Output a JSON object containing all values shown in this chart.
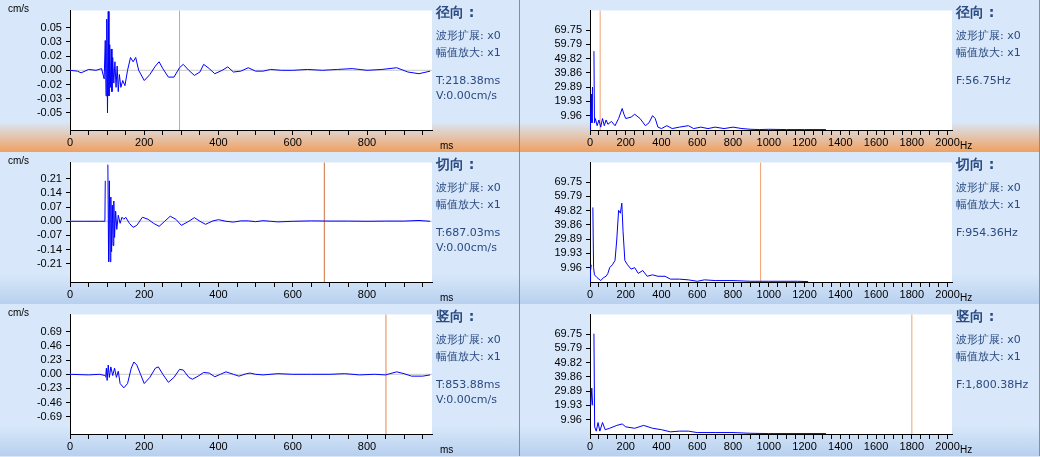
{
  "chart_data": [
    {
      "type": "line",
      "ylabel": "cm/s",
      "xlabel": "ms",
      "grid": false,
      "legend": false,
      "marker": "none",
      "xlim": [
        0,
        975
      ],
      "ylim": [
        -0.07,
        0.07
      ],
      "xticks": [
        0,
        {
          "value": 50,
          "label": null
        },
        {
          "value": 100,
          "label": null
        },
        {
          "value": 150,
          "label": null
        },
        200,
        {
          "value": 250,
          "label": null
        },
        {
          "value": 300,
          "label": null
        },
        {
          "value": 350,
          "label": null
        },
        400,
        {
          "value": 450,
          "label": null
        },
        {
          "value": 500,
          "label": null
        },
        {
          "value": 550,
          "label": null
        },
        600,
        {
          "value": 650,
          "label": null
        },
        {
          "value": 700,
          "label": null
        },
        {
          "value": 750,
          "label": null
        },
        800,
        {
          "value": 850,
          "label": null
        },
        {
          "value": 900,
          "label": null
        },
        {
          "value": 950,
          "label": null
        }
      ],
      "yticks": [
        {
          "value": -0.05,
          "label": "-0.05"
        },
        {
          "value": -0.0333,
          "label": "-0.03"
        },
        {
          "value": -0.0167,
          "label": "-0.02"
        },
        {
          "value": 0,
          "label": "0.00"
        },
        {
          "value": 0.0167,
          "label": "0.02"
        },
        {
          "value": 0.0333,
          "label": "0.03"
        },
        {
          "value": 0.05,
          "label": "0.05"
        }
      ],
      "series": [
        {
          "color": "#0000ff",
          "x": [
            0,
            20,
            30,
            50,
            70,
            85,
            92,
            95,
            97,
            99,
            101,
            103,
            105,
            107,
            109,
            111,
            113,
            115,
            118,
            121,
            124,
            127,
            130,
            133,
            137,
            142,
            148,
            155,
            163,
            170,
            177,
            185,
            200,
            215,
            230,
            240,
            250,
            265,
            280,
            295,
            305,
            320,
            335,
            350,
            360,
            375,
            390,
            410,
            425,
            440,
            460,
            480,
            500,
            520,
            540,
            570,
            600,
            640,
            680,
            720,
            760,
            800,
            840,
            880,
            910,
            940,
            970
          ],
          "values": [
            0,
            -0.001,
            -0.003,
            0.001,
            0,
            0.002,
            -0.01,
            0.035,
            -0.03,
            0.06,
            -0.05,
            0.069,
            -0.03,
            0.03,
            -0.02,
            0.025,
            -0.025,
            0.015,
            -0.015,
            0.01,
            -0.02,
            0.005,
            -0.025,
            -0.005,
            -0.02,
            -0.012,
            -0.018,
            0,
            0.015,
            0.01,
            0.015,
            0,
            -0.012,
            -0.005,
            0.005,
            0.01,
            0.002,
            -0.008,
            -0.008,
            0.003,
            0.007,
            0,
            -0.006,
            -0.002,
            0.007,
            0.002,
            -0.004,
            0,
            0.004,
            -0.002,
            -0.001,
            0.003,
            -0.001,
            -0.001,
            0.001,
            0,
            0,
            0.001,
            0,
            0.001,
            0.002,
            0,
            0.001,
            0.003,
            -0.002,
            -0.004,
            -0.001
          ]
        }
      ],
      "ref_lines": [
        {
          "axis": "y",
          "value": 0,
          "color": "#c8c8c8"
        },
        {
          "axis": "x",
          "value": 295,
          "color": "#e8a070"
        }
      ],
      "annotations": [
        "径向 :",
        "波形扩展: x0",
        "幅值放大: x1",
        "T:218.38ms",
        "V:0.00cm/s"
      ]
    },
    {
      "type": "line",
      "xlabel": "Hz",
      "grid": false,
      "legend": false,
      "marker": "none",
      "xlim": [
        0,
        2025
      ],
      "ylim": [
        0,
        83.3
      ],
      "xticks": [
        0,
        {
          "value": 50,
          "label": null
        },
        {
          "value": 100,
          "label": null
        },
        {
          "value": 150,
          "label": null
        },
        200,
        {
          "value": 250,
          "label": null
        },
        {
          "value": 300,
          "label": null
        },
        {
          "value": 350,
          "label": null
        },
        400,
        {
          "value": 450,
          "label": null
        },
        {
          "value": 500,
          "label": null
        },
        {
          "value": 550,
          "label": null
        },
        600,
        {
          "value": 650,
          "label": null
        },
        {
          "value": 700,
          "label": null
        },
        {
          "value": 750,
          "label": null
        },
        800,
        {
          "value": 850,
          "label": null
        },
        {
          "value": 900,
          "label": null
        },
        {
          "value": 950,
          "label": null
        },
        1000,
        {
          "value": 1050,
          "label": null
        },
        {
          "value": 1100,
          "label": null
        },
        {
          "value": 1150,
          "label": null
        },
        1200,
        {
          "value": 1250,
          "label": null
        },
        {
          "value": 1300,
          "label": null
        },
        {
          "value": 1350,
          "label": null
        },
        1400,
        {
          "value": 1450,
          "label": null
        },
        {
          "value": 1500,
          "label": null
        },
        {
          "value": 1550,
          "label": null
        },
        1600,
        {
          "value": 1650,
          "label": null
        },
        {
          "value": 1700,
          "label": null
        },
        {
          "value": 1750,
          "label": null
        },
        1800,
        {
          "value": 1850,
          "label": null
        },
        {
          "value": 1900,
          "label": null
        },
        {
          "value": 1950,
          "label": null
        },
        2000
      ],
      "yticks": [
        9.96,
        19.93,
        29.89,
        39.86,
        49.82,
        59.79,
        69.75
      ],
      "series": [
        {
          "color": "#0000ff",
          "x": [
            0,
            3,
            7,
            11,
            14,
            18,
            22,
            25,
            30,
            40,
            50,
            60,
            70,
            80,
            90,
            100,
            120,
            140,
            160,
            180,
            190,
            200,
            230,
            250,
            280,
            310,
            330,
            350,
            365,
            380,
            400,
            430,
            460,
            500,
            550,
            580,
            620,
            660,
            700,
            750,
            800,
            850,
            900,
            950,
            1000,
            1100,
            1200,
            1320
          ],
          "values": [
            0,
            10,
            25,
            5,
            30,
            null,
            55,
            5,
            8,
            3,
            7,
            2,
            8,
            3,
            7,
            4,
            6,
            3,
            8,
            15,
            11,
            8,
            9,
            11,
            8,
            3,
            5,
            10,
            8,
            2,
            1,
            3,
            1,
            2,
            3,
            1,
            2,
            1,
            2,
            1,
            2,
            1,
            0.5,
            0.3,
            0.5,
            0.3,
            0.3,
            0.3
          ]
        }
      ],
      "ref_lines": [
        {
          "axis": "x",
          "value": 56.75,
          "color": "#f0a070"
        }
      ],
      "annotations": [
        "径向 :",
        "波形扩展: x0",
        "幅值放大: x1",
        "F:56.75Hz"
      ]
    },
    {
      "type": "line",
      "ylabel": "cm/s",
      "xlabel": "ms",
      "grid": false,
      "legend": false,
      "marker": "none",
      "xlim": [
        0,
        975
      ],
      "ylim": [
        -0.3,
        0.29
      ],
      "xticks": [
        0,
        {
          "value": 50,
          "label": null
        },
        {
          "value": 100,
          "label": null
        },
        {
          "value": 150,
          "label": null
        },
        200,
        {
          "value": 250,
          "label": null
        },
        {
          "value": 300,
          "label": null
        },
        {
          "value": 350,
          "label": null
        },
        400,
        {
          "value": 450,
          "label": null
        },
        {
          "value": 500,
          "label": null
        },
        {
          "value": 550,
          "label": null
        },
        600,
        {
          "value": 650,
          "label": null
        },
        {
          "value": 700,
          "label": null
        },
        {
          "value": 750,
          "label": null
        },
        800,
        {
          "value": 850,
          "label": null
        },
        {
          "value": 900,
          "label": null
        },
        {
          "value": 950,
          "label": null
        }
      ],
      "yticks": [
        {
          "value": -0.21,
          "label": "-0.21"
        },
        {
          "value": -0.14,
          "label": "-0.14"
        },
        {
          "value": -0.07,
          "label": "-0.07"
        },
        {
          "value": 0,
          "label": "0.00"
        },
        {
          "value": 0.07,
          "label": "0.07"
        },
        {
          "value": 0.14,
          "label": "0.14"
        },
        {
          "value": 0.21,
          "label": "0.21"
        }
      ],
      "series": [
        {
          "color": "#0000ff",
          "x": [
            0,
            40,
            80,
            94,
            95,
            96,
            98,
            100,
            102,
            104,
            106,
            108,
            110,
            112,
            114,
            116,
            118,
            120,
            123,
            126,
            130,
            135,
            140,
            145,
            150,
            160,
            170,
            180,
            195,
            210,
            225,
            240,
            255,
            270,
            285,
            300,
            320,
            335,
            350,
            365,
            385,
            400,
            420,
            440,
            460,
            480,
            500,
            520,
            540,
            560,
            600,
            650,
            700,
            750,
            800,
            850,
            900,
            940,
            970
          ],
          "values": [
            0,
            0,
            0,
            0,
            0.2,
            null,
            null,
            null,
            0.28,
            -0.2,
            0.2,
            -0.2,
            0.12,
            -0.15,
            0.08,
            -0.12,
            0.1,
            -0.08,
            0.05,
            -0.04,
            0.03,
            -0.01,
            0.02,
            0.01,
            0.02,
            -0.01,
            -0.03,
            -0.02,
            0.02,
            0.01,
            -0.01,
            -0.025,
            0,
            0.025,
            0.01,
            -0.02,
            0,
            0.018,
            0,
            -0.015,
            0.002,
            0.008,
            0,
            -0.004,
            0.002,
            0.002,
            -0.002,
            0.003,
            0,
            -0.003,
            0,
            0.002,
            0.001,
            0.001,
            0,
            0.001,
            0.001,
            0.004,
            0
          ]
        }
      ],
      "ref_lines": [
        {
          "axis": "y",
          "value": 0,
          "color": "#c8c8c8"
        },
        {
          "axis": "x",
          "value": 685,
          "color": "#d07040"
        }
      ],
      "annotations": [
        "切向 :",
        "波形扩展: x0",
        "幅值放大: x1",
        "T:687.03ms",
        "V:0.00cm/s"
      ]
    },
    {
      "type": "line",
      "xlabel": "Hz",
      "grid": false,
      "legend": false,
      "marker": "none",
      "xlim": [
        0,
        2025
      ],
      "ylim": [
        0,
        83.3
      ],
      "xticks": [
        0,
        {
          "value": 50,
          "label": null
        },
        {
          "value": 100,
          "label": null
        },
        {
          "value": 150,
          "label": null
        },
        200,
        {
          "value": 250,
          "label": null
        },
        {
          "value": 300,
          "label": null
        },
        {
          "value": 350,
          "label": null
        },
        400,
        {
          "value": 450,
          "label": null
        },
        {
          "value": 500,
          "label": null
        },
        {
          "value": 550,
          "label": null
        },
        600,
        {
          "value": 650,
          "label": null
        },
        {
          "value": 700,
          "label": null
        },
        {
          "value": 750,
          "label": null
        },
        800,
        {
          "value": 850,
          "label": null
        },
        {
          "value": 900,
          "label": null
        },
        {
          "value": 950,
          "label": null
        },
        1000,
        {
          "value": 1050,
          "label": null
        },
        {
          "value": 1100,
          "label": null
        },
        {
          "value": 1150,
          "label": null
        },
        1200,
        {
          "value": 1250,
          "label": null
        },
        {
          "value": 1300,
          "label": null
        },
        {
          "value": 1350,
          "label": null
        },
        1400,
        {
          "value": 1450,
          "label": null
        },
        {
          "value": 1500,
          "label": null
        },
        {
          "value": 1550,
          "label": null
        },
        1600,
        {
          "value": 1650,
          "label": null
        },
        {
          "value": 1700,
          "label": null
        },
        {
          "value": 1750,
          "label": null
        },
        1800,
        {
          "value": 1850,
          "label": null
        },
        {
          "value": 1900,
          "label": null
        },
        {
          "value": 1950,
          "label": null
        },
        2000
      ],
      "yticks": [
        9.96,
        19.93,
        29.89,
        39.86,
        49.82,
        59.79,
        69.75
      ],
      "series": [
        {
          "color": "#0000ff",
          "x": [
            0,
            3,
            7,
            12,
            16,
            20,
            25,
            40,
            60,
            75,
            90,
            100,
            110,
            125,
            140,
            150,
            160,
            170,
            178,
            185,
            195,
            210,
            230,
            250,
            270,
            295,
            320,
            350,
            380,
            420,
            450,
            500,
            550,
            600,
            640,
            700,
            800,
            900,
            1000,
            1160,
            1220
          ],
          "values": [
            0,
            8,
            12,
            null,
            52,
            10,
            5,
            3,
            1,
            3,
            4,
            6,
            10,
            12,
            15,
            30,
            50,
            48,
            55,
            35,
            15,
            12,
            9,
            10,
            6,
            8,
            4,
            5,
            4,
            4,
            2,
            2,
            1.5,
            0.5,
            1.5,
            1,
            1,
            0.5,
            0.5,
            0.5,
            0.3
          ]
        }
      ],
      "ref_lines": [
        {
          "axis": "x",
          "value": 954.36,
          "color": "#f0a070"
        }
      ],
      "annotations": [
        "切向 :",
        "波形扩展: x0",
        "幅值放大: x1",
        "F:954.36Hz"
      ]
    },
    {
      "type": "line",
      "ylabel": "cm/s",
      "xlabel": "ms",
      "grid": false,
      "legend": false,
      "marker": "none",
      "xlim": [
        0,
        975
      ],
      "ylim": [
        -0.97,
        0.97
      ],
      "xticks": [
        0,
        {
          "value": 50,
          "label": null
        },
        {
          "value": 100,
          "label": null
        },
        {
          "value": 150,
          "label": null
        },
        200,
        {
          "value": 250,
          "label": null
        },
        {
          "value": 300,
          "label": null
        },
        {
          "value": 350,
          "label": null
        },
        400,
        {
          "value": 450,
          "label": null
        },
        {
          "value": 500,
          "label": null
        },
        {
          "value": 550,
          "label": null
        },
        600,
        {
          "value": 650,
          "label": null
        },
        {
          "value": 700,
          "label": null
        },
        {
          "value": 750,
          "label": null
        },
        800,
        {
          "value": 850,
          "label": null
        },
        {
          "value": 900,
          "label": null
        },
        {
          "value": 950,
          "label": null
        }
      ],
      "yticks": [
        {
          "value": -0.69,
          "label": "-0.69"
        },
        {
          "value": -0.46,
          "label": "-0.46"
        },
        {
          "value": -0.23,
          "label": "-0.23"
        },
        {
          "value": 0,
          "label": "0.00"
        },
        {
          "value": 0.23,
          "label": "0.23"
        },
        {
          "value": 0.46,
          "label": "0.46"
        },
        {
          "value": 0.69,
          "label": "0.69"
        }
      ],
      "series": [
        {
          "color": "#0000ff",
          "x": [
            0,
            50,
            80,
            94,
            95,
            96,
            98,
            100,
            103,
            106,
            110,
            115,
            120,
            125,
            130,
            135,
            145,
            155,
            165,
            172,
            180,
            190,
            200,
            215,
            230,
            238,
            250,
            265,
            280,
            295,
            305,
            320,
            330,
            345,
            360,
            375,
            390,
            405,
            420,
            440,
            455,
            475,
            485,
            500,
            520,
            560,
            600,
            650,
            700,
            740,
            780,
            820,
            850,
            880,
            900,
            920,
            950,
            970
          ],
          "values": [
            0,
            -0.01,
            0,
            -0.02,
            null,
            -0.05,
            0.1,
            -0.1,
            0.15,
            -0.05,
            0.12,
            -0.02,
            0.1,
            -0.05,
            0.05,
            -0.15,
            -0.22,
            -0.15,
            0.1,
            0.2,
            0.15,
            0,
            -0.15,
            -0.05,
            0.1,
            0.12,
            0,
            -0.13,
            -0.05,
            0.08,
            0.07,
            -0.05,
            -0.08,
            -0.03,
            0.03,
            0.02,
            -0.04,
            0,
            0.04,
            0,
            -0.03,
            0.01,
            0.02,
            0,
            -0.01,
            0.01,
            0,
            0,
            0,
            0.01,
            -0.01,
            0,
            -0.01,
            0.04,
            0.01,
            -0.03,
            -0.03,
            -0.01
          ]
        }
      ],
      "ref_lines": [
        {
          "axis": "y",
          "value": 0,
          "color": "#c8c8c8"
        },
        {
          "axis": "x",
          "value": 851,
          "color": "#e08850"
        }
      ],
      "annotations": [
        "竖向 :",
        "波形扩展: x0",
        "幅值放大: x1",
        "T:853.88ms",
        "V:0.00cm/s"
      ]
    },
    {
      "type": "line",
      "xlabel": "Hz",
      "grid": false,
      "legend": false,
      "marker": "none",
      "xlim": [
        0,
        2025
      ],
      "ylim": [
        0,
        83.3
      ],
      "xticks": [
        0,
        {
          "value": 50,
          "label": null
        },
        {
          "value": 100,
          "label": null
        },
        {
          "value": 150,
          "label": null
        },
        200,
        {
          "value": 250,
          "label": null
        },
        {
          "value": 300,
          "label": null
        },
        {
          "value": 350,
          "label": null
        },
        400,
        {
          "value": 450,
          "label": null
        },
        {
          "value": 500,
          "label": null
        },
        {
          "value": 550,
          "label": null
        },
        600,
        {
          "value": 650,
          "label": null
        },
        {
          "value": 700,
          "label": null
        },
        {
          "value": 750,
          "label": null
        },
        800,
        {
          "value": 850,
          "label": null
        },
        {
          "value": 900,
          "label": null
        },
        {
          "value": 950,
          "label": null
        },
        1000,
        {
          "value": 1050,
          "label": null
        },
        {
          "value": 1100,
          "label": null
        },
        {
          "value": 1150,
          "label": null
        },
        1200,
        {
          "value": 1250,
          "label": null
        },
        {
          "value": 1300,
          "label": null
        },
        {
          "value": 1350,
          "label": null
        },
        1400,
        {
          "value": 1450,
          "label": null
        },
        {
          "value": 1500,
          "label": null
        },
        {
          "value": 1550,
          "label": null
        },
        1600,
        {
          "value": 1650,
          "label": null
        },
        {
          "value": 1700,
          "label": null
        },
        {
          "value": 1750,
          "label": null
        },
        1800,
        {
          "value": 1850,
          "label": null
        },
        {
          "value": 1900,
          "label": null
        },
        {
          "value": 1950,
          "label": null
        },
        2000
      ],
      "yticks": [
        9.96,
        19.93,
        29.89,
        39.86,
        49.82,
        59.79,
        69.75
      ],
      "series": [
        {
          "color": "#0000ff",
          "x": [
            5,
            10,
            15,
            19,
            22,
            26,
            35,
            45,
            55,
            70,
            85,
            110,
            150,
            180,
            200,
            250,
            300,
            350,
            400,
            450,
            500,
            550,
            600,
            700,
            800,
            900,
            1000,
            1320
          ],
          "values": [
            20,
            32,
            20,
            null,
            70,
            5,
            2,
            8,
            2,
            8,
            3,
            4,
            6,
            7,
            5,
            4,
            6,
            4,
            3,
            1.5,
            2,
            2,
            1,
            1,
            1,
            0.5,
            0.3,
            0.3
          ]
        }
      ],
      "ref_lines": [
        {
          "axis": "x",
          "value": 1800.38,
          "color": "#f0a070"
        }
      ],
      "annotations": [
        "竖向 :",
        "波形扩展: x0",
        "幅值放大: x1",
        "F:1,800.38Hz"
      ]
    }
  ]
}
